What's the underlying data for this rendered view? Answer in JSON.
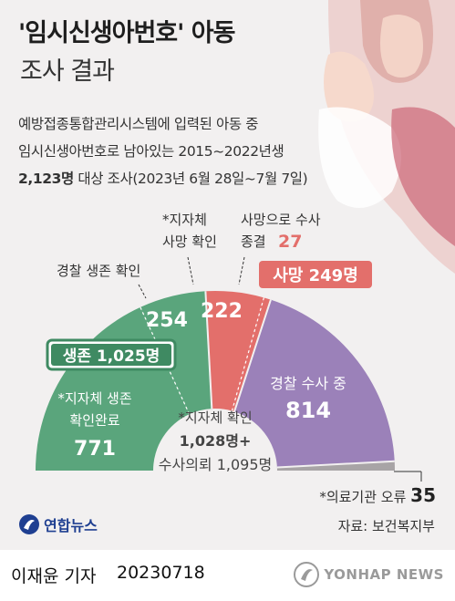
{
  "header": {
    "title_line1": "'임시신생아번호' 아동",
    "title_line2": "조사 결과",
    "desc_line1": "예방접종통합관리시스템에 입력된 아동 중",
    "desc_line2": "임시신생아번호로 남아있는 2015~2022년생",
    "desc_line3_bold": "2,123명",
    "desc_line3_rest": " 대상 조사(2023년 6월 28일~7월 7일)"
  },
  "chart_data": {
    "type": "pie",
    "total": 2123,
    "arc_order": [
      "생존",
      "사망",
      "수사 의뢰",
      "의료기관 오류"
    ],
    "slices": [
      {
        "label": "*지자체 생존 확인완료",
        "value": 771,
        "group": "생존",
        "color": "#5aa57c"
      },
      {
        "label": "경찰 생존 확인",
        "value": 254,
        "group": "생존",
        "color": "#5aa57c"
      },
      {
        "label": "*지자체 사망 확인",
        "value": 222,
        "group": "사망",
        "color": "#e36f6b"
      },
      {
        "label": "사망으로 수사 종결",
        "value": 27,
        "group": "사망",
        "color": "#e36f6b"
      },
      {
        "label": "경찰 수사 중",
        "value": 814,
        "group": "수사 의뢰",
        "color": "#9b81b9"
      },
      {
        "label": "*의료기관 오류",
        "value": 35,
        "group": "의료기관 오류",
        "color": "#a8a4a6"
      }
    ],
    "groups": [
      {
        "label": "생존",
        "value": "1,025명",
        "color": "#3f8a62"
      },
      {
        "label": "사망",
        "value": "249명",
        "color": "#e36f6b"
      }
    ]
  },
  "labels": {
    "police_survive": "경찰 생존 확인",
    "police_survive_value": "254",
    "local_death_l1": "*지자체",
    "local_death_l2": "사망 확인",
    "local_death_value": "222",
    "closed_l1": "사망으로 수사",
    "closed_l2": "종결",
    "closed_value": "27",
    "death_badge": "사망 249명",
    "survive_badge": "생존 1,025명",
    "local_survive_l1": "*지자체 생존",
    "local_survive_l2": "확인완료",
    "local_survive_value": "771",
    "investigation_label": "경찰 수사 중",
    "investigation_value": "814",
    "center_l1": "*지자체 확인",
    "center_l2": "1,028명+",
    "center_l3": "수사의뢰 1,095명",
    "error_label": "*의료기관 오류 ",
    "error_value": "35"
  },
  "brand": {
    "logo_text": "연합뉴스",
    "source": "자료: 보건복지부"
  },
  "footer": {
    "byline": "이재윤 기자",
    "date": "20230718",
    "watermark": "YONHAP NEWS"
  }
}
